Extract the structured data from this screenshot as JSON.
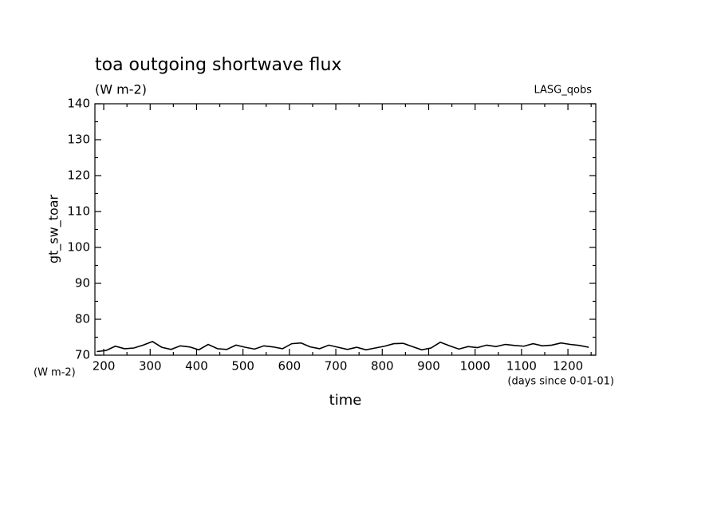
{
  "chart_data": {
    "type": "line",
    "title": "toa outgoing shortwave flux",
    "subtitle": "(W m-2)",
    "source": "LASG_qobs",
    "ylabel": "gt_sw_toar",
    "yunits": "(W m-2)",
    "xlabel": "time",
    "xunits": "(days since 0-01-01)",
    "xlim": [
      181,
      1260
    ],
    "ylim": [
      70,
      140
    ],
    "xticks": [
      200,
      300,
      400,
      500,
      600,
      700,
      800,
      900,
      1000,
      1100,
      1200
    ],
    "yticks": [
      70,
      80,
      90,
      100,
      110,
      120,
      130,
      140
    ],
    "xticks_minor": [
      250,
      350,
      450,
      550,
      650,
      750,
      850,
      950,
      1050,
      1150,
      1250
    ],
    "yticks_minor": [
      75,
      85,
      95,
      105,
      115,
      125,
      135
    ],
    "color": "#000000",
    "x": [
      185,
      205,
      225,
      245,
      265,
      285,
      305,
      325,
      345,
      365,
      385,
      405,
      425,
      445,
      465,
      485,
      505,
      525,
      545,
      565,
      585,
      605,
      625,
      645,
      665,
      685,
      705,
      725,
      745,
      765,
      785,
      805,
      825,
      845,
      865,
      885,
      905,
      925,
      945,
      965,
      985,
      1005,
      1025,
      1045,
      1065,
      1085,
      1105,
      1125,
      1145,
      1165,
      1185,
      1205,
      1225,
      1245
    ],
    "values": [
      71,
      71.3,
      72.5,
      71.8,
      72,
      72.8,
      73.8,
      72.2,
      71.6,
      72.6,
      72.3,
      71.5,
      73,
      71.8,
      71.6,
      72.8,
      72.2,
      71.7,
      72.6,
      72.3,
      71.8,
      73.2,
      73.4,
      72.3,
      71.8,
      72.8,
      72.2,
      71.6,
      72.2,
      71.5,
      72,
      72.5,
      73.2,
      73.3,
      72.4,
      71.5,
      72,
      73.6,
      72.6,
      71.7,
      72.4,
      72.1,
      72.8,
      72.4,
      73,
      72.7,
      72.5,
      73.2,
      72.6,
      72.8,
      73.4,
      73,
      72.7,
      72.2
    ]
  }
}
